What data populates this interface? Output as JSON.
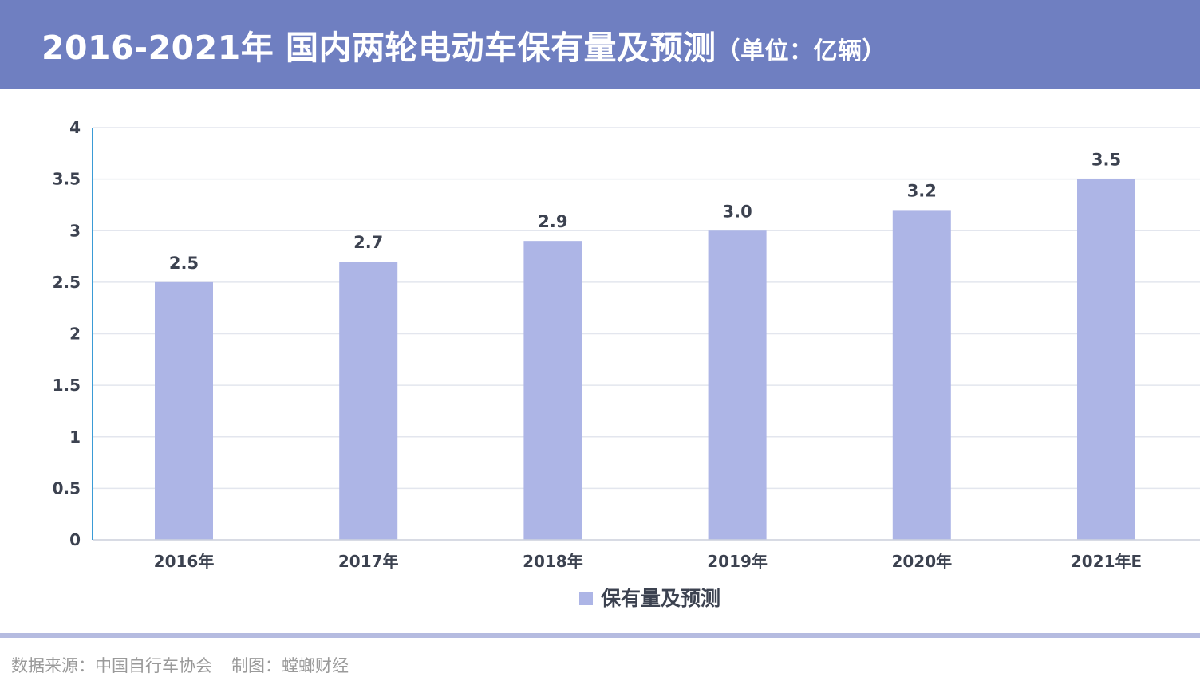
{
  "header": {
    "title": "2016-2021年 国内两轮电动车保有量及预测",
    "unit": "（单位：亿辆）"
  },
  "colors": {
    "header_bg": "#6f7fc1",
    "bar": "#adb5e6",
    "text": "#3c4250",
    "gridline": "#e3e6ee",
    "axis_line": "#3a9bd6",
    "footer_rule": "#b5bbe0"
  },
  "chart_data": {
    "type": "bar",
    "categories": [
      "2016年",
      "2017年",
      "2018年",
      "2019年",
      "2020年",
      "2021年E"
    ],
    "series": [
      {
        "name": "保有量及预测",
        "values": [
          2.5,
          2.7,
          2.9,
          3.0,
          3.2,
          3.5
        ],
        "labels": [
          "2.5",
          "2.7",
          "2.9",
          "3.0",
          "3.2",
          "3.5"
        ]
      }
    ],
    "y_ticks": [
      "0",
      "0.5",
      "1",
      "1.5",
      "2",
      "2.5",
      "3",
      "3.5",
      "4"
    ],
    "ylim": [
      0,
      4
    ],
    "grid": true,
    "legend": "bottom-center"
  },
  "footer": {
    "source": "数据来源：中国自行车协会",
    "credit": "制图：螳螂财经"
  }
}
